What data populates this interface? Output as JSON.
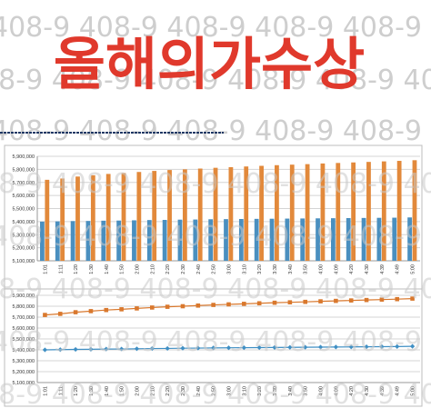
{
  "title": "올해의가수상",
  "watermark": "408-9",
  "colors": {
    "title": "#e0392c",
    "bar_orange": "#e2893b",
    "bar_blue": "#4a8fbf",
    "line_orange": "#d9782d",
    "line_blue": "#3f8fc4",
    "watermark": "#c9c9c9",
    "divider": "#1f3864"
  },
  "chart_data": [
    {
      "type": "bar",
      "categories": [
        "1:01",
        "1:11",
        "1:20",
        "1:30",
        "1:40",
        "1:50",
        "2:00",
        "2:10",
        "2:20",
        "2:30",
        "2:40",
        "2:50",
        "3:00",
        "3:10",
        "3:20",
        "3:30",
        "3:40",
        "3:50",
        "4:00",
        "4:09",
        "4:20",
        "4:30",
        "4:39",
        "4:49",
        "5:00"
      ],
      "yticks": [
        "5,100,000",
        "5,200,000",
        "5,300,000",
        "5,400,000",
        "5,500,000",
        "5,600,000",
        "5,700,000",
        "5,800,000",
        "5,900,000"
      ],
      "ylim": [
        5100000,
        5900000
      ],
      "grid": true,
      "series": [
        {
          "values": [
            5400000,
            5402000,
            5404000,
            5405000,
            5407000,
            5408000,
            5410000,
            5412000,
            5413000,
            5415000,
            5416000,
            5418000,
            5419000,
            5420000,
            5421000,
            5422000,
            5423000,
            5424000,
            5425000,
            5426000,
            5427000,
            5428000,
            5429000,
            5430000,
            5432000
          ]
        },
        {
          "values": [
            5720000,
            5730000,
            5745000,
            5755000,
            5765000,
            5772000,
            5780000,
            5788000,
            5795000,
            5800000,
            5806000,
            5812000,
            5817000,
            5822000,
            5827000,
            5832000,
            5836000,
            5840000,
            5845000,
            5849000,
            5853000,
            5857000,
            5861000,
            5865000,
            5870000
          ]
        }
      ]
    },
    {
      "type": "line",
      "categories": [
        "1:01",
        "1:11",
        "1:20",
        "1:30",
        "1:40",
        "1:50",
        "2:00",
        "2:10",
        "2:20",
        "2:30",
        "2:40",
        "2:50",
        "3:00",
        "3:10",
        "3:20",
        "3:30",
        "3:40",
        "3:50",
        "4:00",
        "4:09",
        "4:20",
        "4:30",
        "4:39",
        "4:49",
        "5:00"
      ],
      "yticks": [
        "5,100,000",
        "5,200,000",
        "5,300,000",
        "5,400,000",
        "5,500,000",
        "5,600,000",
        "5,700,000",
        "5,800,000",
        "5,900,000"
      ],
      "ylim": [
        5100000,
        5900000
      ],
      "grid": true,
      "series": [
        {
          "values": [
            5400000,
            5402000,
            5404000,
            5405000,
            5407000,
            5408000,
            5410000,
            5412000,
            5413000,
            5415000,
            5416000,
            5418000,
            5419000,
            5420000,
            5421000,
            5422000,
            5423000,
            5424000,
            5425000,
            5426000,
            5427000,
            5428000,
            5429000,
            5430000,
            5432000
          ]
        },
        {
          "values": [
            5720000,
            5730000,
            5745000,
            5755000,
            5765000,
            5772000,
            5780000,
            5788000,
            5795000,
            5800000,
            5806000,
            5812000,
            5817000,
            5822000,
            5827000,
            5832000,
            5836000,
            5840000,
            5845000,
            5849000,
            5853000,
            5857000,
            5861000,
            5865000,
            5870000
          ]
        }
      ]
    }
  ]
}
